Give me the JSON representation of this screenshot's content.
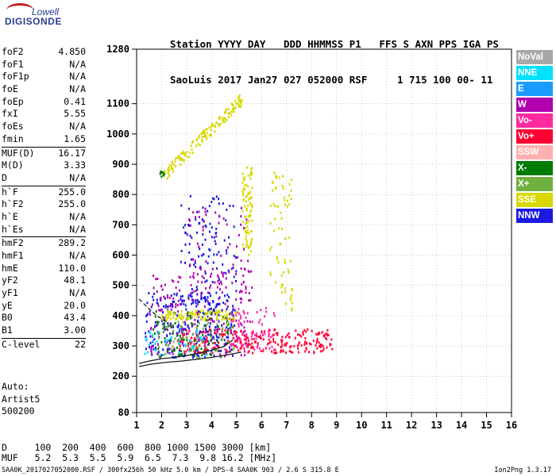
{
  "logo": {
    "line1": "Lowell",
    "line2": "DIGISONDE"
  },
  "header": {
    "line1": "Station YYYY DAY   DDD HHMMSS P1   FFS S AXN PPS IGA PS",
    "line2": "SaoLuis 2017 Jan27 027 052000 RSF     1 715 100 00- 11"
  },
  "params": [
    {
      "label": "foF2",
      "value": "4.850"
    },
    {
      "label": "foF1",
      "value": "N/A"
    },
    {
      "label": "foF1p",
      "value": "N/A"
    },
    {
      "label": "foE",
      "value": "N/A"
    },
    {
      "label": "foEp",
      "value": "0.41"
    },
    {
      "label": "fxI",
      "value": "5.55"
    },
    {
      "label": "foEs",
      "value": "N/A"
    },
    {
      "label": "fmin",
      "value": "1.65"
    },
    {
      "label": "MUF(D)",
      "value": "16.17",
      "sep": true
    },
    {
      "label": "M(D)",
      "value": "3.33"
    },
    {
      "label": "D",
      "value": "N/A"
    },
    {
      "label": "h`F",
      "value": "255.0",
      "sep": true
    },
    {
      "label": "h`F2",
      "value": "255.0"
    },
    {
      "label": "h`E",
      "value": "N/A"
    },
    {
      "label": "h`Es",
      "value": "N/A"
    },
    {
      "label": "hmF2",
      "value": "289.2",
      "sep": true
    },
    {
      "label": "hmF1",
      "value": "N/A"
    },
    {
      "label": "hmE",
      "value": "110.0"
    },
    {
      "label": "yF2",
      "value": "48.1"
    },
    {
      "label": "yF1",
      "value": "N/A"
    },
    {
      "label": "yE",
      "value": "20.0"
    },
    {
      "label": "B0",
      "value": "43.4"
    },
    {
      "label": "B1",
      "value": "3.00"
    },
    {
      "label": "C-level",
      "value": "22",
      "sep": true
    }
  ],
  "auto": {
    "line1": "Auto:",
    "line2": "Artist5",
    "line3": "500200"
  },
  "legend": [
    {
      "label": "NoVal",
      "color": "#a8a8a8"
    },
    {
      "label": "NNE",
      "color": "#00e0ff"
    },
    {
      "label": "E",
      "color": "#1a9cff"
    },
    {
      "label": "W",
      "color": "#b000b0"
    },
    {
      "label": "Vo-",
      "color": "#ff2aa0"
    },
    {
      "label": "Vo+",
      "color": "#ff0033"
    },
    {
      "label": "SSW",
      "color": "#ffb0b0"
    },
    {
      "label": "X-",
      "color": "#007a00"
    },
    {
      "label": "X+",
      "color": "#70b040"
    },
    {
      "label": "SSE",
      "color": "#d8d800"
    },
    {
      "label": "NNW",
      "color": "#1a1ae0"
    }
  ],
  "dmuf": {
    "d_label": "D",
    "d_values": "100  200  400  600  800 1000 1500 3000 [km]",
    "muf_label": "MUF",
    "muf_values": "5.2  5.3  5.5  5.9  6.5  7.3  9.8 16.2 [MHz]"
  },
  "footer": {
    "left": "SAA0K_2017027052000.RSF / 300fx256h 50 kHz 5.0 km / DPS-4 SAA0K 903 / 2.6 S 315.8 E",
    "right": "Ion2Png 1.3.17"
  },
  "chart_data": {
    "type": "scatter",
    "title": "",
    "xlabel": "",
    "ylabel": "",
    "xlim": [
      1,
      16
    ],
    "ylim": [
      80,
      1280
    ],
    "x_ticks": [
      1,
      2,
      3,
      4,
      5,
      6,
      7,
      8,
      9,
      10,
      11,
      12,
      13,
      14,
      15,
      16
    ],
    "y_ticks": [
      80,
      200,
      300,
      400,
      500,
      600,
      700,
      800,
      900,
      1000,
      1100,
      1280
    ],
    "grid": true,
    "traces": [
      {
        "name": "O-trace",
        "color": "#1a1a1a",
        "style": "solid",
        "x": [
          1.1,
          1.5,
          2.0,
          2.5,
          3.0,
          3.5,
          4.0,
          4.5,
          4.85
        ],
        "y": [
          242,
          250,
          258,
          262,
          268,
          276,
          286,
          298,
          320
        ]
      },
      {
        "name": "profile",
        "color": "#1a1a1a",
        "style": "solid",
        "x": [
          1.1,
          1.6,
          2.2,
          2.8,
          3.4,
          4.0,
          4.6,
          5.2
        ],
        "y": [
          232,
          240,
          246,
          250,
          256,
          262,
          270,
          280
        ]
      },
      {
        "name": "model",
        "color": "#1a1a1a",
        "style": "dashed",
        "x": [
          1.1,
          1.4,
          1.8,
          2.2
        ],
        "y": [
          455,
          430,
          400,
          380
        ]
      }
    ],
    "echo_regions": [
      {
        "color": "#1a1ae0",
        "x": [
          1.3,
          4.9
        ],
        "y": [
          265,
          480
        ],
        "n": 260
      },
      {
        "color": "#b000b0",
        "x": [
          1.5,
          5.6
        ],
        "y": [
          270,
          560
        ],
        "n": 200
      },
      {
        "color": "#ff0033",
        "x": [
          2.6,
          8.8
        ],
        "y": [
          280,
          360
        ],
        "n": 260
      },
      {
        "color": "#ff2aa0",
        "x": [
          4.5,
          6.5
        ],
        "y": [
          290,
          430
        ],
        "n": 80
      },
      {
        "color": "#007a00",
        "x": [
          1.6,
          4.8
        ],
        "y": [
          270,
          420
        ],
        "n": 90
      },
      {
        "color": "#70b040",
        "x": [
          1.8,
          4.9
        ],
        "y": [
          260,
          400
        ],
        "n": 70
      },
      {
        "color": "#00e0ff",
        "x": [
          1.3,
          3.8
        ],
        "y": [
          265,
          360
        ],
        "n": 40
      },
      {
        "color": "#d8d800",
        "x": [
          2.0,
          5.0
        ],
        "y": [
          390,
          420
        ],
        "n": 90
      },
      {
        "color": "#d8d800",
        "x": [
          2.0,
          5.2
        ],
        "y": [
          860,
          1120
        ],
        "n": 140,
        "curve": true
      },
      {
        "color": "#d8d800",
        "x": [
          5.2,
          5.6
        ],
        "y": [
          600,
          900
        ],
        "n": 90
      },
      {
        "color": "#d8d800",
        "x": [
          6.3,
          7.2
        ],
        "y": [
          420,
          880
        ],
        "n": 70
      },
      {
        "color": "#1a1ae0",
        "x": [
          2.7,
          5.0
        ],
        "y": [
          420,
          800
        ],
        "n": 120
      },
      {
        "color": "#b000b0",
        "x": [
          3.0,
          5.5
        ],
        "y": [
          500,
          760
        ],
        "n": 60
      },
      {
        "color": "#007a00",
        "x": [
          1.9,
          2.1
        ],
        "y": [
          860,
          880
        ],
        "n": 8
      }
    ]
  }
}
